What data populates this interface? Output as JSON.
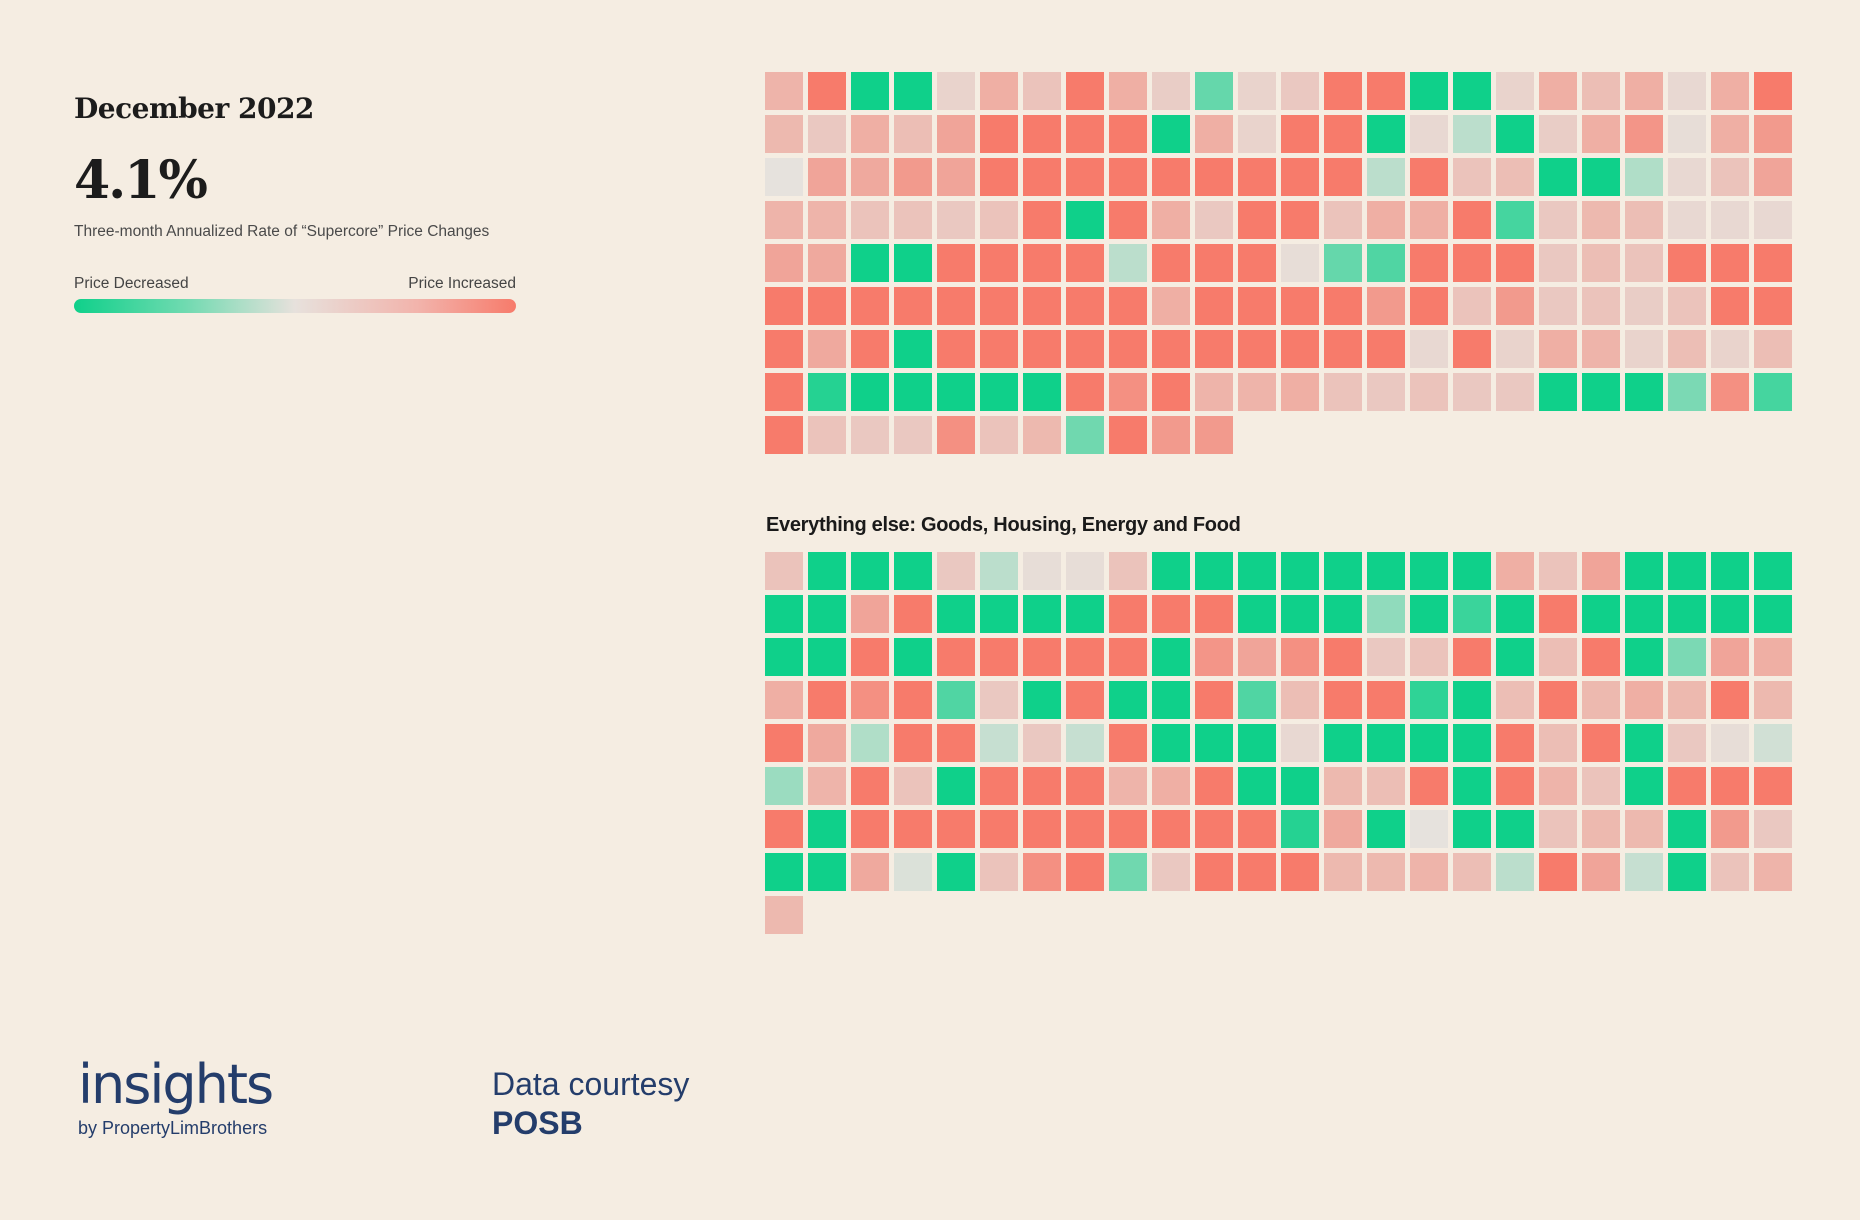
{
  "header": {
    "date": "December 2022",
    "rate": "4.1%",
    "rate_label": "Three-month Annualized Rate of “Supercore” Price Changes"
  },
  "legend": {
    "low_label": "Price Decreased",
    "high_label": "Price Increased"
  },
  "chart_data": [
    {
      "type": "heatmap",
      "title": "",
      "scale_note": "Each cell is a price category; value is a relative price change score from -1 (decreased) to +1 (increased)",
      "columns": 24,
      "values": [
        0.45,
        1.0,
        -1.0,
        -1.0,
        0.15,
        0.5,
        0.3,
        1.0,
        0.5,
        0.2,
        -0.6,
        0.15,
        0.25,
        1.0,
        1.0,
        -1.0,
        -1.0,
        0.15,
        0.5,
        0.35,
        0.5,
        0.1,
        0.5,
        1.0,
        0.4,
        0.25,
        0.5,
        0.35,
        0.6,
        1.0,
        1.0,
        1.0,
        1.0,
        -1.0,
        0.5,
        0.15,
        1.0,
        1.0,
        -1.0,
        0.1,
        -0.2,
        -1.0,
        0.2,
        0.5,
        0.75,
        0.05,
        0.5,
        0.7,
        0.0,
        0.6,
        0.55,
        0.7,
        0.6,
        1.0,
        1.0,
        1.0,
        1.0,
        1.0,
        1.0,
        1.0,
        1.0,
        1.0,
        -0.2,
        1.0,
        0.3,
        0.35,
        -1.0,
        -1.0,
        -0.25,
        0.1,
        0.3,
        0.6,
        0.45,
        0.45,
        0.3,
        0.3,
        0.25,
        0.3,
        1.0,
        -1.0,
        1.0,
        0.5,
        0.25,
        1.0,
        1.0,
        0.3,
        0.5,
        0.5,
        1.0,
        -0.75,
        0.25,
        0.4,
        0.35,
        0.1,
        0.1,
        0.1,
        0.6,
        0.55,
        -1.0,
        -1.0,
        1.0,
        1.0,
        1.0,
        1.0,
        -0.2,
        1.0,
        1.0,
        1.0,
        0.05,
        -0.6,
        -0.7,
        1.0,
        1.0,
        1.0,
        0.25,
        0.35,
        0.3,
        1.0,
        1.0,
        1.0,
        1.0,
        1.0,
        1.0,
        1.0,
        1.0,
        1.0,
        1.0,
        1.0,
        1.0,
        0.5,
        1.0,
        1.0,
        1.0,
        1.0,
        0.7,
        1.0,
        0.3,
        0.7,
        0.25,
        0.3,
        0.2,
        0.3,
        1.0,
        1.0,
        1.0,
        0.55,
        1.0,
        -1.0,
        1.0,
        1.0,
        1.0,
        1.0,
        1.0,
        1.0,
        1.0,
        1.0,
        1.0,
        1.0,
        1.0,
        0.1,
        1.0,
        0.15,
        0.5,
        0.45,
        0.15,
        0.35,
        0.15,
        0.35,
        1.0,
        -0.9,
        -1.0,
        -1.0,
        -1.0,
        -1.0,
        -1.0,
        1.0,
        0.8,
        1.0,
        0.45,
        0.45,
        0.5,
        0.3,
        0.25,
        0.3,
        0.25,
        0.25,
        -1.0,
        -1.0,
        -1.0,
        -0.5,
        0.8,
        -0.75,
        1.0,
        0.3,
        0.25,
        0.25,
        0.8,
        0.3,
        0.4,
        -0.55,
        1.0,
        0.7,
        0.7
      ]
    },
    {
      "type": "heatmap",
      "title": "Everything else: Goods, Housing, Energy and Food",
      "columns": 24,
      "values": [
        0.3,
        -1.0,
        -1.0,
        -1.0,
        0.25,
        -0.2,
        0.05,
        0.05,
        0.3,
        -1.0,
        -1.0,
        -1.0,
        -1.0,
        -1.0,
        -1.0,
        -1.0,
        -1.0,
        0.5,
        0.3,
        0.6,
        -1.0,
        -1.0,
        -1.0,
        -1.0,
        -1.0,
        -1.0,
        0.6,
        1.0,
        -1.0,
        -1.0,
        -1.0,
        -1.0,
        1.0,
        1.0,
        1.0,
        -1.0,
        -1.0,
        -1.0,
        -0.4,
        -1.0,
        -0.8,
        -1.0,
        1.0,
        -1.0,
        -1.0,
        -1.0,
        -1.0,
        -1.0,
        -1.0,
        -1.0,
        1.0,
        -1.0,
        1.0,
        1.0,
        1.0,
        1.0,
        1.0,
        -1.0,
        0.75,
        0.6,
        0.8,
        1.0,
        0.25,
        0.3,
        1.0,
        -1.0,
        0.35,
        1.0,
        -1.0,
        -0.5,
        0.6,
        0.5,
        0.5,
        1.0,
        0.8,
        1.0,
        -0.7,
        0.25,
        -1.0,
        1.0,
        -1.0,
        -1.0,
        1.0,
        -0.7,
        0.35,
        1.0,
        1.0,
        -0.85,
        -1.0,
        0.35,
        1.0,
        0.4,
        0.5,
        0.4,
        1.0,
        0.4,
        1.0,
        0.55,
        -0.25,
        1.0,
        1.0,
        -0.15,
        0.25,
        -0.15,
        1.0,
        -1.0,
        -1.0,
        -1.0,
        0.1,
        -1.0,
        -1.0,
        -1.0,
        -1.0,
        1.0,
        0.35,
        1.0,
        -1.0,
        0.25,
        0.05,
        -0.1,
        -0.35,
        0.45,
        1.0,
        0.3,
        -1.0,
        1.0,
        1.0,
        1.0,
        0.45,
        0.5,
        1.0,
        -1.0,
        -1.0,
        0.4,
        0.35,
        1.0,
        -1.0,
        1.0,
        0.45,
        0.3,
        -1.0,
        1.0,
        1.0,
        1.0,
        1.0,
        -1.0,
        1.0,
        1.0,
        1.0,
        1.0,
        1.0,
        1.0,
        1.0,
        1.0,
        1.0,
        1.0,
        -0.9,
        0.55,
        -1.0,
        0.0,
        -1.0,
        -1.0,
        0.3,
        0.4,
        0.4,
        -1.0,
        0.7,
        0.25,
        -1.0,
        -1.0,
        0.55,
        -0.05,
        -1.0,
        0.3,
        0.8,
        1.0,
        -0.55,
        0.25,
        1.0,
        1.0,
        1.0,
        0.4,
        0.4,
        0.45,
        0.35,
        -0.2,
        1.0,
        0.6,
        -0.15,
        -1.0,
        0.3,
        0.45,
        0.4
      ]
    }
  ],
  "colors": {
    "decreased": "#0fd08a",
    "neutral": "#e6e2dd",
    "increased": "#f77b6b",
    "brand": "#243d6b"
  },
  "footer": {
    "brand_name": "insights",
    "brand_sub": "by PropertyLimBrothers",
    "credit_label": "Data courtesy",
    "credit_source": "POSB"
  }
}
